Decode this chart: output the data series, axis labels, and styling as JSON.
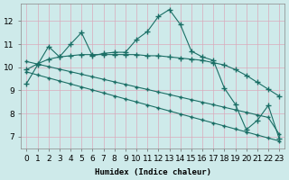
{
  "bg_color": "#ceeaea",
  "grid_color": "#daaabb",
  "line_color": "#1a6e65",
  "xlabel": "Humidex (Indice chaleur)",
  "xlim": [
    -0.5,
    23.5
  ],
  "ylim": [
    6.5,
    12.75
  ],
  "yticks": [
    7,
    8,
    9,
    10,
    11,
    12
  ],
  "xtick_labels": [
    "0",
    "1",
    "2",
    "3",
    "4",
    "5",
    "6",
    "7",
    "8",
    "9",
    "10",
    "11",
    "12",
    "13",
    "14",
    "15",
    "16",
    "17",
    "18",
    "19",
    "20",
    "21",
    "22",
    "23"
  ],
  "series1_x": [
    0,
    1,
    2,
    3,
    4,
    5,
    6,
    7,
    8,
    9,
    10,
    11,
    12,
    13,
    14,
    15,
    16,
    17,
    18,
    19,
    20,
    21,
    22,
    23
  ],
  "series1_y": [
    9.3,
    10.1,
    10.9,
    10.45,
    11.0,
    11.5,
    10.5,
    10.6,
    10.65,
    10.65,
    11.2,
    11.55,
    12.2,
    12.5,
    11.85,
    10.7,
    10.45,
    10.3,
    9.1,
    8.4,
    7.3,
    7.7,
    8.35,
    6.9
  ],
  "series2_x": [
    0,
    1,
    2,
    3,
    4,
    5,
    6,
    7,
    8,
    9,
    10,
    11,
    12,
    13,
    14,
    15,
    16,
    17,
    18,
    19,
    20,
    21,
    22,
    23
  ],
  "series2_y": [
    9.9,
    10.15,
    10.35,
    10.45,
    10.5,
    10.55,
    10.55,
    10.55,
    10.55,
    10.55,
    10.55,
    10.5,
    10.5,
    10.45,
    10.4,
    10.35,
    10.3,
    10.2,
    10.1,
    9.9,
    9.65,
    9.35,
    9.05,
    8.75
  ],
  "series3_x": [
    0,
    1,
    2,
    3,
    4,
    5,
    6,
    7,
    8,
    9,
    10,
    11,
    12,
    13,
    14,
    15,
    16,
    17,
    18,
    19,
    20,
    21,
    22,
    23
  ],
  "series3_y": [
    9.8,
    9.67,
    9.54,
    9.41,
    9.28,
    9.15,
    9.02,
    8.89,
    8.76,
    8.63,
    8.5,
    8.37,
    8.24,
    8.11,
    7.98,
    7.85,
    7.72,
    7.59,
    7.46,
    7.33,
    7.2,
    7.07,
    6.94,
    6.81
  ],
  "series4_x": [
    0,
    1,
    2,
    3,
    4,
    5,
    6,
    7,
    8,
    9,
    10,
    11,
    12,
    13,
    14,
    15,
    16,
    17,
    18,
    19,
    20,
    21,
    22,
    23
  ],
  "series4_y": [
    10.25,
    10.14,
    10.03,
    9.92,
    9.81,
    9.7,
    9.59,
    9.48,
    9.37,
    9.26,
    9.15,
    9.04,
    8.93,
    8.82,
    8.71,
    8.6,
    8.49,
    8.38,
    8.27,
    8.16,
    8.05,
    7.94,
    7.83,
    7.1
  ]
}
